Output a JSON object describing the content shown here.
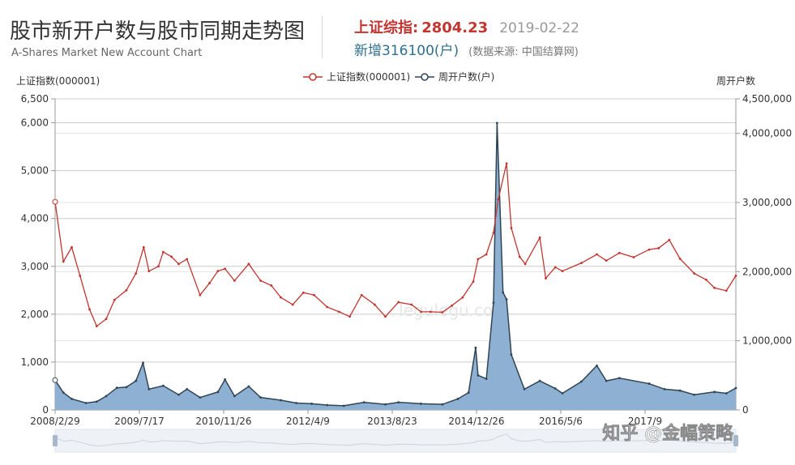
{
  "header": {
    "title": "股市新开户数与股市同期走势图",
    "subtitle": "A-Shares Market New Account Chart",
    "index_label": "上证综指:",
    "index_value": "2804.23",
    "index_date": "2019-02-22",
    "new_accounts": "新增316100(户)",
    "source": "(数据来源: 中国结算网)"
  },
  "watermark": {
    "site": "legulegu.com",
    "brand": "知乎 @金幅策略"
  },
  "colors": {
    "index_line": "#c23531",
    "accounts_line": "#2f4554",
    "accounts_fill": "#8eb1d3",
    "title_accent": "#c23531",
    "grid": "#cccccc"
  },
  "chart_data": {
    "type": "line",
    "left_axis_title": "上证指数(000001)",
    "right_axis_title": "周开户数",
    "left_ylim": [
      0,
      6500
    ],
    "right_ylim": [
      0,
      4500000
    ],
    "left_ticks": [
      "6,500",
      "6,000",
      "5,000",
      "4,000",
      "3,000",
      "2,000",
      "1,000",
      "0"
    ],
    "left_tick_values": [
      6500,
      6000,
      5000,
      4000,
      3000,
      2000,
      1000,
      0
    ],
    "right_ticks": [
      "4,500,000",
      "4,000,000",
      "3,000,000",
      "2,000,000",
      "1,000,000",
      "0"
    ],
    "right_tick_values": [
      4500000,
      4000000,
      3000000,
      2000000,
      1000000,
      0
    ],
    "x_ticks": [
      "2008/2/29",
      "2009/7/17",
      "2010/11/26",
      "2012/4/9",
      "2013/8/23",
      "2014/12/26",
      "2016/5/6",
      "2017/9"
    ],
    "x_range": [
      "2008-02-29",
      "2019-02-22"
    ],
    "grid": true,
    "legend_position": "top-center",
    "series": [
      {
        "name": "上证指数(000001)",
        "axis": "left",
        "points": [
          [
            "2008-02-29",
            4348
          ],
          [
            "2008-04-18",
            3100
          ],
          [
            "2008-06-06",
            3400
          ],
          [
            "2008-07-25",
            2800
          ],
          [
            "2008-09-19",
            2100
          ],
          [
            "2008-10-31",
            1750
          ],
          [
            "2008-12-26",
            1900
          ],
          [
            "2009-02-13",
            2300
          ],
          [
            "2009-04-24",
            2500
          ],
          [
            "2009-06-19",
            2850
          ],
          [
            "2009-08-04",
            3400
          ],
          [
            "2009-09-04",
            2900
          ],
          [
            "2009-10-30",
            3000
          ],
          [
            "2009-11-27",
            3300
          ],
          [
            "2010-01-15",
            3200
          ],
          [
            "2010-02-26",
            3050
          ],
          [
            "2010-04-16",
            3150
          ],
          [
            "2010-07-02",
            2400
          ],
          [
            "2010-08-27",
            2650
          ],
          [
            "2010-10-15",
            2900
          ],
          [
            "2010-11-26",
            2950
          ],
          [
            "2011-01-21",
            2700
          ],
          [
            "2011-04-15",
            3050
          ],
          [
            "2011-06-24",
            2700
          ],
          [
            "2011-08-26",
            2600
          ],
          [
            "2011-10-21",
            2350
          ],
          [
            "2011-12-30",
            2200
          ],
          [
            "2012-03-02",
            2450
          ],
          [
            "2012-05-04",
            2400
          ],
          [
            "2012-07-20",
            2150
          ],
          [
            "2012-09-28",
            2050
          ],
          [
            "2012-11-30",
            1950
          ],
          [
            "2013-02-08",
            2400
          ],
          [
            "2013-04-26",
            2200
          ],
          [
            "2013-06-28",
            1950
          ],
          [
            "2013-09-13",
            2250
          ],
          [
            "2013-11-29",
            2200
          ],
          [
            "2014-01-24",
            2050
          ],
          [
            "2014-03-21",
            2050
          ],
          [
            "2014-05-30",
            2040
          ],
          [
            "2014-07-25",
            2180
          ],
          [
            "2014-09-26",
            2350
          ],
          [
            "2014-11-28",
            2680
          ],
          [
            "2014-12-26",
            3150
          ],
          [
            "2015-02-13",
            3250
          ],
          [
            "2015-03-27",
            3700
          ],
          [
            "2015-04-24",
            4400
          ],
          [
            "2015-06-12",
            5150
          ],
          [
            "2015-07-10",
            3800
          ],
          [
            "2015-08-28",
            3200
          ],
          [
            "2015-09-30",
            3050
          ],
          [
            "2015-12-25",
            3600
          ],
          [
            "2016-01-29",
            2750
          ],
          [
            "2016-03-25",
            2980
          ],
          [
            "2016-05-06",
            2900
          ],
          [
            "2016-08-26",
            3070
          ],
          [
            "2016-11-25",
            3250
          ],
          [
            "2017-01-20",
            3120
          ],
          [
            "2017-04-07",
            3280
          ],
          [
            "2017-06-30",
            3190
          ],
          [
            "2017-09-29",
            3350
          ],
          [
            "2017-11-24",
            3380
          ],
          [
            "2018-01-26",
            3550
          ],
          [
            "2018-03-30",
            3160
          ],
          [
            "2018-06-22",
            2850
          ],
          [
            "2018-08-31",
            2720
          ],
          [
            "2018-10-19",
            2550
          ],
          [
            "2018-12-28",
            2490
          ],
          [
            "2019-02-22",
            2804
          ]
        ]
      },
      {
        "name": "周开户数(户)",
        "axis": "right",
        "points": [
          [
            "2008-02-29",
            430000
          ],
          [
            "2008-04-18",
            250000
          ],
          [
            "2008-06-06",
            160000
          ],
          [
            "2008-08-29",
            100000
          ],
          [
            "2008-10-31",
            120000
          ],
          [
            "2008-12-26",
            200000
          ],
          [
            "2009-02-27",
            320000
          ],
          [
            "2009-04-24",
            330000
          ],
          [
            "2009-06-19",
            420000
          ],
          [
            "2009-07-31",
            680000
          ],
          [
            "2009-09-04",
            300000
          ],
          [
            "2009-11-27",
            350000
          ],
          [
            "2010-02-26",
            220000
          ],
          [
            "2010-04-16",
            300000
          ],
          [
            "2010-07-02",
            180000
          ],
          [
            "2010-10-15",
            260000
          ],
          [
            "2010-11-26",
            440000
          ],
          [
            "2011-01-21",
            200000
          ],
          [
            "2011-04-15",
            340000
          ],
          [
            "2011-06-24",
            180000
          ],
          [
            "2011-10-21",
            140000
          ],
          [
            "2012-01-20",
            100000
          ],
          [
            "2012-04-20",
            90000
          ],
          [
            "2012-07-20",
            70000
          ],
          [
            "2012-10-26",
            60000
          ],
          [
            "2013-02-22",
            110000
          ],
          [
            "2013-06-28",
            80000
          ],
          [
            "2013-09-13",
            110000
          ],
          [
            "2014-01-24",
            90000
          ],
          [
            "2014-05-30",
            80000
          ],
          [
            "2014-08-29",
            160000
          ],
          [
            "2014-10-31",
            250000
          ],
          [
            "2014-12-12",
            900000
          ],
          [
            "2014-12-26",
            500000
          ],
          [
            "2015-02-13",
            450000
          ],
          [
            "2015-03-27",
            1550000
          ],
          [
            "2015-04-17",
            4150000
          ],
          [
            "2015-05-22",
            1700000
          ],
          [
            "2015-06-12",
            1600000
          ],
          [
            "2015-07-10",
            800000
          ],
          [
            "2015-09-25",
            300000
          ],
          [
            "2015-12-25",
            420000
          ],
          [
            "2016-03-25",
            310000
          ],
          [
            "2016-05-06",
            240000
          ],
          [
            "2016-08-26",
            410000
          ],
          [
            "2016-11-25",
            640000
          ],
          [
            "2017-01-20",
            420000
          ],
          [
            "2017-04-07",
            460000
          ],
          [
            "2017-09-29",
            380000
          ],
          [
            "2017-12-29",
            300000
          ],
          [
            "2018-03-30",
            280000
          ],
          [
            "2018-06-22",
            220000
          ],
          [
            "2018-10-19",
            260000
          ],
          [
            "2018-12-28",
            240000
          ],
          [
            "2019-02-22",
            316100
          ]
        ]
      }
    ]
  },
  "slider": {
    "handle_left": "start-handle",
    "handle_right": "end-handle"
  }
}
